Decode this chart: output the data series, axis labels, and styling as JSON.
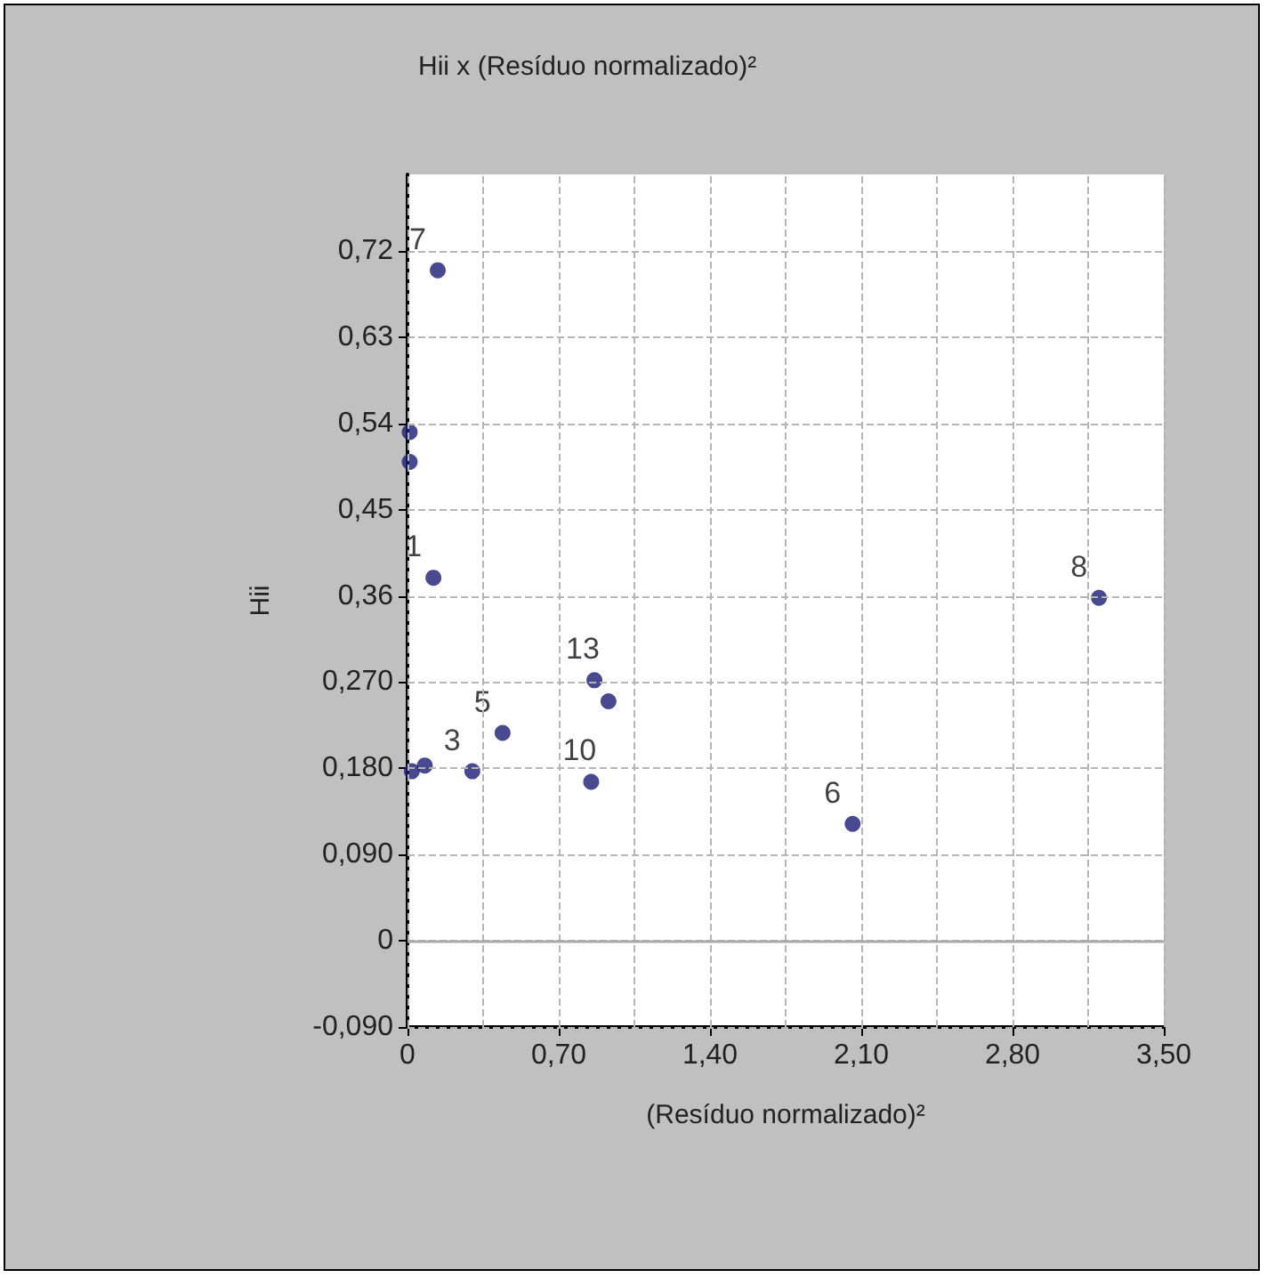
{
  "chart_data": {
    "type": "scatter",
    "title": "Hii x (Resíduo normalizado)²",
    "xlabel": "(Resíduo normalizado)²",
    "ylabel": "Hii",
    "series": [
      {
        "color": "#1c1c74",
        "x": [
          0.14,
          0.01,
          0.01,
          0.12,
          0.865,
          0.93,
          0.44,
          0.3,
          0.85,
          0.08,
          0.02,
          3.2,
          2.06
        ],
        "values": [
          0.7,
          0.531,
          0.5,
          0.379,
          0.272,
          0.25,
          0.217,
          0.177,
          0.166,
          0.183,
          0.177,
          0.358,
          0.122
        ]
      }
    ],
    "annotations": [
      {
        "text": "7",
        "x": 0.14,
        "y": 0.7
      },
      {
        "text": "1",
        "x": 0.12,
        "y": 0.379
      },
      {
        "text": "13",
        "x": 0.865,
        "y": 0.272
      },
      {
        "text": "5",
        "x": 0.44,
        "y": 0.217
      },
      {
        "text": "3",
        "x": 0.3,
        "y": 0.177
      },
      {
        "text": "10",
        "x": 0.85,
        "y": 0.166
      },
      {
        "text": "8",
        "x": 3.2,
        "y": 0.358
      },
      {
        "text": "6",
        "x": 2.06,
        "y": 0.122
      }
    ],
    "xlim": [
      0,
      3.5
    ],
    "xticks": [
      0,
      {
        "value": 0.35,
        "label": null
      },
      {
        "value": 0.7,
        "label": "0,70"
      },
      {
        "value": 1.05,
        "label": null
      },
      {
        "value": 1.4,
        "label": "1,40"
      },
      {
        "value": 1.75,
        "label": null
      },
      {
        "value": 2.1,
        "label": "2,10"
      },
      {
        "value": 2.45,
        "label": null
      },
      {
        "value": 2.8,
        "label": "2,80"
      },
      {
        "value": 3.15,
        "label": null
      },
      {
        "value": 3.5,
        "label": "3,50"
      }
    ],
    "ylim": [
      -0.09,
      0.8
    ],
    "yticks": [
      {
        "value": -0.09,
        "label": "-0,090"
      },
      0,
      {
        "value": 0.09,
        "label": "0,090"
      },
      {
        "value": 0.18,
        "label": "0,180"
      },
      {
        "value": 0.27,
        "label": "0,270"
      },
      {
        "value": 0.36,
        "label": "0,36"
      },
      {
        "value": 0.45,
        "label": "0,45"
      },
      {
        "value": 0.54,
        "label": "0,54"
      },
      {
        "value": 0.63,
        "label": "0,63"
      },
      {
        "value": 0.72,
        "label": "0,72"
      }
    ],
    "ref_lines": [
      {
        "axis": "y",
        "value": 0,
        "label": null,
        "color": "#a8a8a8"
      }
    ],
    "grid": true,
    "marker": "circle"
  }
}
